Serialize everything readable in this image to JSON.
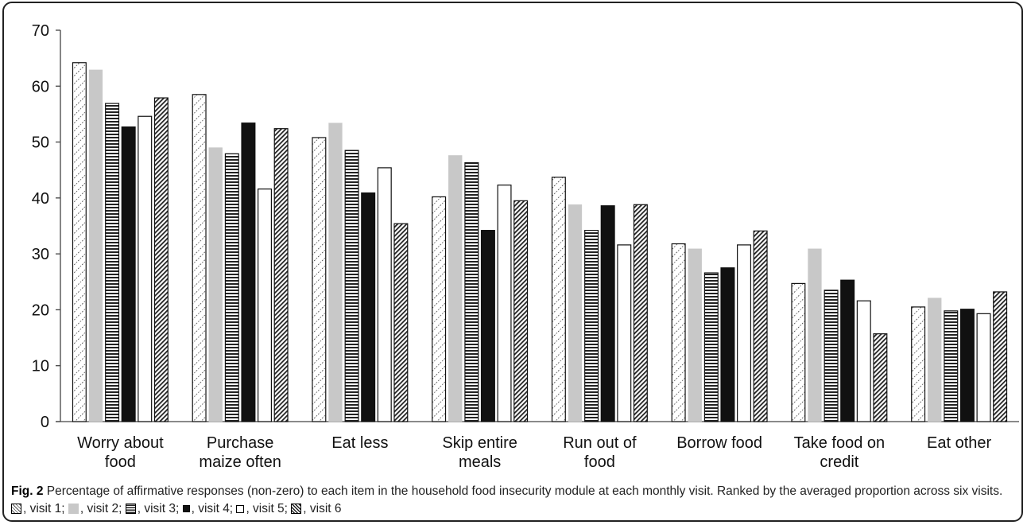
{
  "caption": {
    "label": "Fig. 2",
    "text": " Percentage of affirmative responses (non-zero) to each item in the household food insecurity module at each monthly visit. Ranked by the averaged proportion across six visits. ",
    "legend_items": [
      {
        "text": ", visit 1; "
      },
      {
        "text": ", visit 2; "
      },
      {
        "text": ", visit 3; "
      },
      {
        "text": ", visit 4; "
      },
      {
        "text": ", visit 5; "
      },
      {
        "text": ", visit 6"
      }
    ]
  },
  "chart_data": {
    "type": "bar",
    "title": "",
    "xlabel": "",
    "ylabel": "",
    "ylim": [
      0,
      70
    ],
    "yticks": [
      "0",
      "10",
      "20",
      "30",
      "40",
      "50",
      "60",
      "70"
    ],
    "grid": false,
    "categories": [
      [
        "Worry about",
        "food"
      ],
      [
        "Purchase",
        "maize often"
      ],
      [
        "Eat less"
      ],
      [
        "Skip entire",
        "meals"
      ],
      [
        "Run out of",
        "food"
      ],
      [
        "Borrow food"
      ],
      [
        "Take food on",
        "credit"
      ],
      [
        "Eat other"
      ]
    ],
    "series": [
      {
        "pattern": "dotted-diagonal",
        "values": [
          64.2,
          58.5,
          50.8,
          40.2,
          43.7,
          31.8,
          24.7,
          20.5
        ]
      },
      {
        "pattern": "solid-gray",
        "color": "#c8c8c8",
        "values": [
          62.9,
          49.0,
          53.4,
          47.6,
          38.8,
          30.9,
          30.9,
          22.1
        ]
      },
      {
        "pattern": "horizontal-lines",
        "values": [
          56.9,
          47.9,
          48.5,
          46.3,
          34.2,
          26.6,
          23.5,
          19.8
        ]
      },
      {
        "pattern": "solid-black",
        "color": "#111111",
        "values": [
          52.7,
          53.4,
          40.9,
          34.2,
          38.6,
          27.5,
          25.3,
          20.1
        ]
      },
      {
        "pattern": "white",
        "color": "#ffffff",
        "values": [
          54.6,
          41.6,
          45.4,
          42.3,
          31.6,
          31.6,
          21.6,
          19.3
        ]
      },
      {
        "pattern": "dense-diagonal",
        "values": [
          57.9,
          52.4,
          35.4,
          39.5,
          38.8,
          34.1,
          15.7,
          23.2
        ]
      }
    ]
  }
}
